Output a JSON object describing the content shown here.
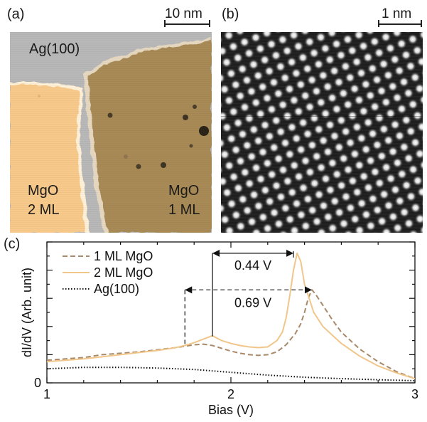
{
  "panel_a": {
    "label": "(a)",
    "scale_bar": "10 nm",
    "substrate_label": "Ag(100)",
    "region_left_line1": "MgO",
    "region_left_line2": "2 ML",
    "region_right_line1": "MgO",
    "region_right_line2": "1 ML",
    "colors": {
      "substrate": "#b8b8b8",
      "mgo_2ml": "#f7c98a",
      "mgo_1ml": "#a88a57"
    }
  },
  "panel_b": {
    "label": "(b)",
    "scale_bar": "1 nm"
  },
  "panel_c": {
    "label": "(c)",
    "annotations": [
      "0.44 V",
      "0.69 V"
    ]
  },
  "chart_data": {
    "type": "line",
    "xlabel": "Bias (V)",
    "ylabel": "dI/dV (Arb. unit)",
    "xlim": [
      1,
      3
    ],
    "ylim": [
      0,
      1.0
    ],
    "x_ticks": [
      "1",
      "2",
      "3"
    ],
    "y_ticks": [
      "0"
    ],
    "legend_position": "top-left",
    "series": [
      {
        "name": "1 ML MgO",
        "style": "dashed",
        "color": "#a88a6a",
        "x": [
          1.0,
          1.1,
          1.2,
          1.3,
          1.4,
          1.5,
          1.6,
          1.7,
          1.75,
          1.8,
          1.85,
          1.9,
          1.95,
          2.0,
          2.05,
          2.1,
          2.15,
          2.2,
          2.25,
          2.3,
          2.35,
          2.38,
          2.4,
          2.42,
          2.44,
          2.46,
          2.5,
          2.55,
          2.6,
          2.7,
          2.8,
          2.9,
          3.0
        ],
        "y": [
          0.16,
          0.17,
          0.18,
          0.2,
          0.21,
          0.22,
          0.235,
          0.25,
          0.26,
          0.27,
          0.275,
          0.265,
          0.245,
          0.225,
          0.21,
          0.2,
          0.195,
          0.2,
          0.22,
          0.27,
          0.35,
          0.42,
          0.5,
          0.6,
          0.66,
          0.63,
          0.55,
          0.45,
          0.36,
          0.24,
          0.15,
          0.08,
          0.03
        ]
      },
      {
        "name": "2 ML MgO",
        "style": "solid",
        "color": "#f0c68a",
        "x": [
          1.0,
          1.1,
          1.2,
          1.3,
          1.4,
          1.5,
          1.6,
          1.7,
          1.75,
          1.8,
          1.85,
          1.9,
          1.92,
          1.95,
          2.0,
          2.05,
          2.1,
          2.15,
          2.2,
          2.25,
          2.28,
          2.3,
          2.32,
          2.34,
          2.36,
          2.38,
          2.4,
          2.45,
          2.5,
          2.6,
          2.7,
          2.8,
          2.9,
          3.0
        ],
        "y": [
          0.15,
          0.16,
          0.17,
          0.185,
          0.2,
          0.215,
          0.23,
          0.25,
          0.265,
          0.285,
          0.31,
          0.335,
          0.32,
          0.3,
          0.28,
          0.265,
          0.255,
          0.25,
          0.255,
          0.3,
          0.36,
          0.46,
          0.62,
          0.8,
          0.92,
          0.86,
          0.7,
          0.5,
          0.4,
          0.28,
          0.19,
          0.12,
          0.07,
          0.03
        ]
      },
      {
        "name": "Ag(100)",
        "style": "dotted",
        "color": "#111111",
        "x": [
          1.0,
          1.2,
          1.4,
          1.6,
          1.8,
          2.0,
          2.2,
          2.4,
          2.6,
          2.8,
          3.0
        ],
        "y": [
          0.1,
          0.11,
          0.11,
          0.105,
          0.095,
          0.075,
          0.055,
          0.04,
          0.03,
          0.022,
          0.015
        ]
      }
    ]
  }
}
